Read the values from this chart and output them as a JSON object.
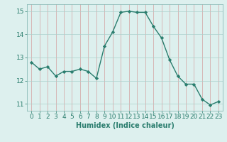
{
  "x": [
    0,
    1,
    2,
    3,
    4,
    5,
    6,
    7,
    8,
    9,
    10,
    11,
    12,
    13,
    14,
    15,
    16,
    17,
    18,
    19,
    20,
    21,
    22,
    23
  ],
  "y": [
    12.8,
    12.5,
    12.6,
    12.2,
    12.4,
    12.4,
    12.5,
    12.4,
    12.1,
    13.5,
    14.1,
    14.95,
    15.0,
    14.95,
    14.95,
    14.35,
    13.85,
    12.9,
    12.2,
    11.85,
    11.85,
    11.2,
    10.95,
    11.1
  ],
  "xlabel": "Humidex (Indice chaleur)",
  "xlim": [
    -0.5,
    23.5
  ],
  "ylim": [
    10.7,
    15.3
  ],
  "yticks": [
    11,
    12,
    13,
    14,
    15
  ],
  "xticks": [
    0,
    1,
    2,
    3,
    4,
    5,
    6,
    7,
    8,
    9,
    10,
    11,
    12,
    13,
    14,
    15,
    16,
    17,
    18,
    19,
    20,
    21,
    22,
    23
  ],
  "line_color": "#2a7d6e",
  "bg_color": "#ddf0ee",
  "grid_color": "#aacfcc",
  "spine_color": "#7ab0ab",
  "xlabel_fontsize": 7,
  "tick_fontsize": 6.5,
  "line_width": 1.0,
  "marker_size": 2.2
}
